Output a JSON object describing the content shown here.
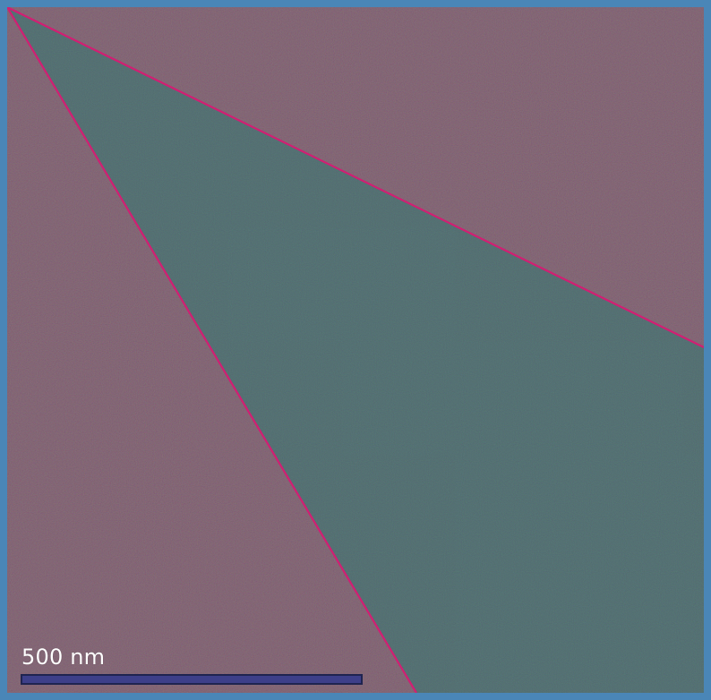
{
  "image": {
    "type": "microscopy",
    "colors": {
      "frame": "#4a86b7",
      "region_outside": "#5a2f43",
      "region_inside": "#3f4f56",
      "boundary_lines": "#d11f73",
      "scale_bar": "#3d3f89"
    }
  },
  "overlay": {
    "scale_bar": {
      "label": "500 nm"
    }
  }
}
